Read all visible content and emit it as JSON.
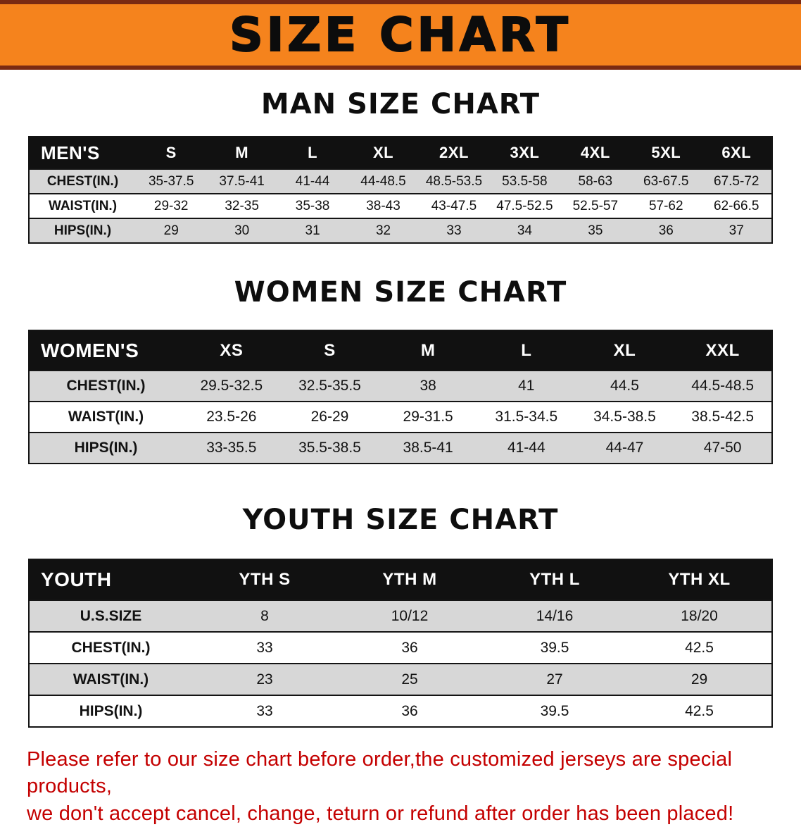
{
  "banner": {
    "title": "SIZE CHART"
  },
  "colors": {
    "banner_bg": "#F5831D",
    "banner_border": "#7A2A12",
    "header_bg": "#111111",
    "stripe": "#D7D7D7",
    "notice_text": "#C40000"
  },
  "sections": [
    {
      "key": "men",
      "heading": "MAN SIZE CHART",
      "table": {
        "header_label": "MEN'S",
        "columns": [
          "S",
          "M",
          "L",
          "XL",
          "2XL",
          "3XL",
          "4XL",
          "5XL",
          "6XL"
        ],
        "rows": [
          {
            "label": "CHEST(IN.)",
            "values": [
              "35-37.5",
              "37.5-41",
              "41-44",
              "44-48.5",
              "48.5-53.5",
              "53.5-58",
              "58-63",
              "63-67.5",
              "67.5-72"
            ]
          },
          {
            "label": "WAIST(IN.)",
            "values": [
              "29-32",
              "32-35",
              "35-38",
              "38-43",
              "43-47.5",
              "47.5-52.5",
              "52.5-57",
              "57-62",
              "62-66.5"
            ]
          },
          {
            "label": "HIPS(IN.)",
            "values": [
              "29",
              "30",
              "31",
              "32",
              "33",
              "34",
              "35",
              "36",
              "37"
            ]
          }
        ]
      }
    },
    {
      "key": "women",
      "heading": "WOMEN SIZE CHART",
      "table": {
        "header_label": "WOMEN'S",
        "columns": [
          "XS",
          "S",
          "M",
          "L",
          "XL",
          "XXL"
        ],
        "rows": [
          {
            "label": "CHEST(IN.)",
            "values": [
              "29.5-32.5",
              "32.5-35.5",
              "38",
              "41",
              "44.5",
              "44.5-48.5"
            ]
          },
          {
            "label": "WAIST(IN.)",
            "values": [
              "23.5-26",
              "26-29",
              "29-31.5",
              "31.5-34.5",
              "34.5-38.5",
              "38.5-42.5"
            ]
          },
          {
            "label": "HIPS(IN.)",
            "values": [
              "33-35.5",
              "35.5-38.5",
              "38.5-41",
              "41-44",
              "44-47",
              "47-50"
            ]
          }
        ]
      }
    },
    {
      "key": "youth",
      "heading": "YOUTH SIZE CHART",
      "table": {
        "header_label": "YOUTH",
        "columns": [
          "YTH S",
          "YTH M",
          "YTH L",
          "YTH XL"
        ],
        "rows": [
          {
            "label": "U.S.SIZE",
            "values": [
              "8",
              "10/12",
              "14/16",
              "18/20"
            ]
          },
          {
            "label": "CHEST(IN.)",
            "values": [
              "33",
              "36",
              "39.5",
              "42.5"
            ]
          },
          {
            "label": "WAIST(IN.)",
            "values": [
              "23",
              "25",
              "27",
              "29"
            ]
          },
          {
            "label": "HIPS(IN.)",
            "values": [
              "33",
              "36",
              "39.5",
              "42.5"
            ]
          }
        ]
      }
    }
  ],
  "footer": {
    "line1": "Please refer to our size chart before order,the customized jerseys are special products,",
    "line2": "we don't accept cancel, change, teturn or refund after order has been placed!"
  }
}
